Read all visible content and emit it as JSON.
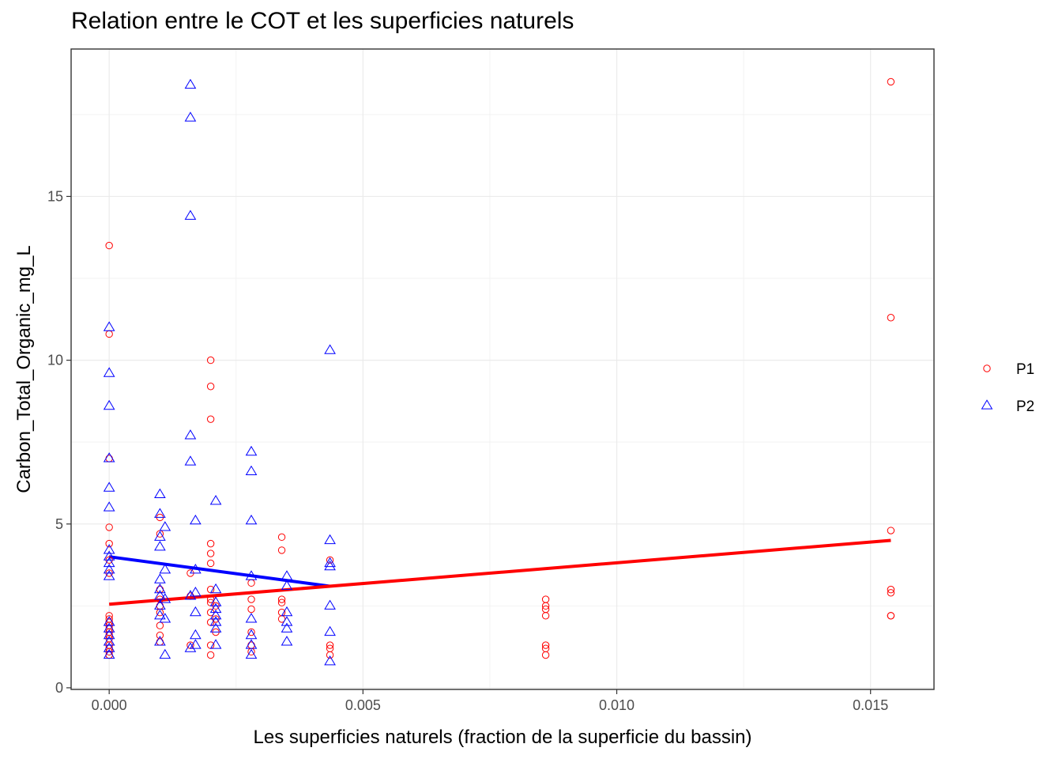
{
  "chart_data": {
    "type": "scatter",
    "title": "Relation entre le COT et les superficies naturels",
    "xlabel": "Les superficies naturels (fraction de la superficie du bassin)",
    "ylabel": "Carbon_Total_Organic_mg_L",
    "xlim": [
      -0.00075,
      0.01625
    ],
    "ylim": [
      -0.05,
      19.5
    ],
    "x_ticks": [
      0.0,
      0.005,
      0.01,
      0.015
    ],
    "x_tick_labels": [
      "0.000",
      "0.005",
      "0.010",
      "0.015"
    ],
    "y_ticks": [
      0,
      5,
      10,
      15
    ],
    "y_tick_labels": [
      "0",
      "5",
      "10",
      "15"
    ],
    "grid": true,
    "legend_position": "right",
    "series": [
      {
        "name": "P1",
        "marker": "circle",
        "color": "#ff0000",
        "points": [
          [
            0.0,
            13.5
          ],
          [
            0.0,
            10.8
          ],
          [
            0.0,
            7.0
          ],
          [
            0.0,
            4.9
          ],
          [
            0.0,
            4.4
          ],
          [
            0.0,
            3.9
          ],
          [
            0.0,
            3.5
          ],
          [
            0.0,
            2.2
          ],
          [
            0.0,
            2.1
          ],
          [
            0.0,
            2.0
          ],
          [
            0.0,
            1.9
          ],
          [
            0.0,
            1.8
          ],
          [
            0.0,
            1.7
          ],
          [
            0.0,
            1.6
          ],
          [
            0.0,
            1.5
          ],
          [
            0.0,
            1.3
          ],
          [
            0.0,
            1.2
          ],
          [
            0.0,
            1.1
          ],
          [
            0.0,
            1.0
          ],
          [
            0.001,
            5.2
          ],
          [
            0.001,
            4.7
          ],
          [
            0.001,
            3.0
          ],
          [
            0.001,
            2.7
          ],
          [
            0.001,
            2.5
          ],
          [
            0.001,
            2.3
          ],
          [
            0.001,
            1.9
          ],
          [
            0.001,
            1.6
          ],
          [
            0.001,
            1.4
          ],
          [
            0.0016,
            3.5
          ],
          [
            0.0016,
            2.8
          ],
          [
            0.0016,
            1.3
          ],
          [
            0.002,
            10.0
          ],
          [
            0.002,
            9.2
          ],
          [
            0.002,
            8.2
          ],
          [
            0.002,
            4.4
          ],
          [
            0.002,
            4.1
          ],
          [
            0.002,
            3.8
          ],
          [
            0.002,
            3.0
          ],
          [
            0.002,
            2.7
          ],
          [
            0.002,
            2.6
          ],
          [
            0.002,
            2.3
          ],
          [
            0.002,
            2.0
          ],
          [
            0.002,
            1.3
          ],
          [
            0.002,
            1.0
          ],
          [
            0.0021,
            2.5
          ],
          [
            0.0021,
            2.1
          ],
          [
            0.0021,
            1.7
          ],
          [
            0.0028,
            3.2
          ],
          [
            0.0028,
            2.7
          ],
          [
            0.0028,
            2.4
          ],
          [
            0.0028,
            1.7
          ],
          [
            0.0028,
            1.3
          ],
          [
            0.0028,
            1.1
          ],
          [
            0.0034,
            4.6
          ],
          [
            0.0034,
            4.2
          ],
          [
            0.0034,
            2.7
          ],
          [
            0.0034,
            2.6
          ],
          [
            0.0034,
            2.3
          ],
          [
            0.0034,
            2.1
          ],
          [
            0.00435,
            3.9
          ],
          [
            0.00435,
            1.3
          ],
          [
            0.00435,
            1.2
          ],
          [
            0.00435,
            1.0
          ],
          [
            0.0086,
            2.7
          ],
          [
            0.0086,
            2.5
          ],
          [
            0.0086,
            2.4
          ],
          [
            0.0086,
            2.2
          ],
          [
            0.0086,
            1.3
          ],
          [
            0.0086,
            1.2
          ],
          [
            0.0086,
            1.0
          ],
          [
            0.0154,
            18.5
          ],
          [
            0.0154,
            11.3
          ],
          [
            0.0154,
            4.8
          ],
          [
            0.0154,
            3.0
          ],
          [
            0.0154,
            2.9
          ],
          [
            0.0154,
            2.2
          ],
          [
            0.0154,
            2.2
          ]
        ],
        "fit": {
          "x": [
            0.0,
            0.0154
          ],
          "y": [
            2.55,
            4.5
          ]
        }
      },
      {
        "name": "P2",
        "marker": "triangle",
        "color": "#0000ff",
        "points": [
          [
            0.0,
            11.0
          ],
          [
            0.0,
            9.6
          ],
          [
            0.0,
            8.6
          ],
          [
            0.0,
            7.0
          ],
          [
            0.0,
            6.1
          ],
          [
            0.0,
            5.5
          ],
          [
            0.0,
            4.2
          ],
          [
            0.0,
            4.0
          ],
          [
            0.0,
            3.8
          ],
          [
            0.0,
            3.6
          ],
          [
            0.0,
            3.4
          ],
          [
            0.0,
            2.0
          ],
          [
            0.0,
            1.8
          ],
          [
            0.0,
            1.6
          ],
          [
            0.0,
            1.4
          ],
          [
            0.0,
            1.2
          ],
          [
            0.0,
            1.0
          ],
          [
            0.001,
            5.9
          ],
          [
            0.001,
            5.3
          ],
          [
            0.001,
            4.6
          ],
          [
            0.001,
            4.3
          ],
          [
            0.001,
            3.3
          ],
          [
            0.001,
            3.0
          ],
          [
            0.001,
            2.8
          ],
          [
            0.001,
            2.5
          ],
          [
            0.001,
            2.2
          ],
          [
            0.001,
            1.4
          ],
          [
            0.0011,
            4.9
          ],
          [
            0.0011,
            3.6
          ],
          [
            0.0011,
            2.7
          ],
          [
            0.0011,
            2.1
          ],
          [
            0.0011,
            1.0
          ],
          [
            0.0016,
            18.4
          ],
          [
            0.0016,
            17.4
          ],
          [
            0.0016,
            14.4
          ],
          [
            0.0016,
            7.7
          ],
          [
            0.0016,
            6.9
          ],
          [
            0.0016,
            2.8
          ],
          [
            0.0016,
            1.2
          ],
          [
            0.0017,
            5.1
          ],
          [
            0.0017,
            3.6
          ],
          [
            0.0017,
            2.9
          ],
          [
            0.0017,
            2.3
          ],
          [
            0.0017,
            1.6
          ],
          [
            0.0017,
            1.3
          ],
          [
            0.0021,
            5.7
          ],
          [
            0.0021,
            3.0
          ],
          [
            0.0021,
            2.6
          ],
          [
            0.0021,
            2.4
          ],
          [
            0.0021,
            2.2
          ],
          [
            0.0021,
            2.0
          ],
          [
            0.0021,
            1.8
          ],
          [
            0.0021,
            1.3
          ],
          [
            0.0028,
            7.2
          ],
          [
            0.0028,
            6.6
          ],
          [
            0.0028,
            5.1
          ],
          [
            0.0028,
            3.4
          ],
          [
            0.0028,
            2.1
          ],
          [
            0.0028,
            1.6
          ],
          [
            0.0028,
            1.3
          ],
          [
            0.0028,
            1.0
          ],
          [
            0.0035,
            3.4
          ],
          [
            0.0035,
            3.1
          ],
          [
            0.0035,
            2.3
          ],
          [
            0.0035,
            2.0
          ],
          [
            0.0035,
            1.8
          ],
          [
            0.0035,
            1.4
          ],
          [
            0.00435,
            10.3
          ],
          [
            0.00435,
            4.5
          ],
          [
            0.00435,
            3.8
          ],
          [
            0.00435,
            3.7
          ],
          [
            0.00435,
            2.5
          ],
          [
            0.00435,
            1.7
          ],
          [
            0.00435,
            0.8
          ]
        ],
        "fit": {
          "x": [
            0.0,
            0.00435
          ],
          "y": [
            4.0,
            3.1
          ]
        }
      }
    ]
  }
}
